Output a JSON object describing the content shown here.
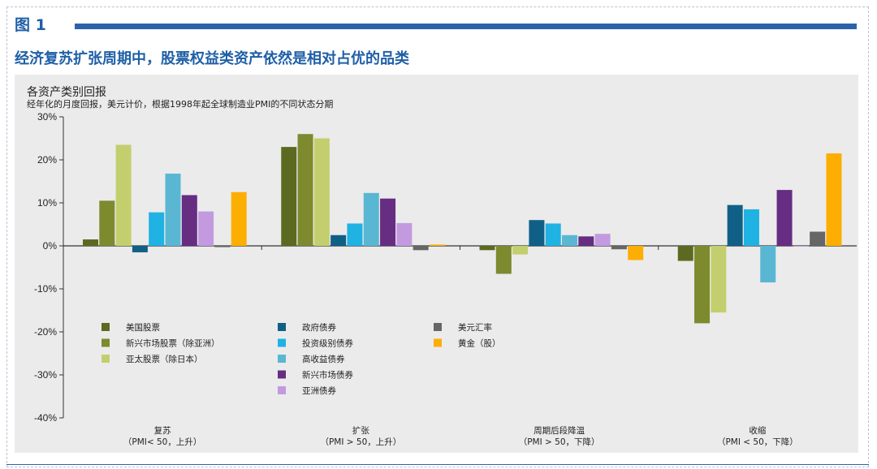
{
  "figure_label": "图 1",
  "headline": "经济复苏扩张周期中，股票权益类资产依然是相对占优的品类",
  "chart_data": {
    "type": "bar",
    "title": "各资产类别回报",
    "subtitle": "经年化的月度回报，美元计价，根据1998年起全球制造业PMI的不同状态分期",
    "ylim": [
      -40,
      30
    ],
    "yticks": [
      "30%",
      "20%",
      "10%",
      "0%",
      "-10%",
      "-20%",
      "-30%",
      "-40%"
    ],
    "categories": [
      {
        "name": "复苏",
        "sub": "（PMI< 50，上升）"
      },
      {
        "name": "扩张",
        "sub": "（PMI > 50，上升）"
      },
      {
        "name": "周期后段降温",
        "sub": "（PMI > 50，下降）"
      },
      {
        "name": "收缩",
        "sub": "（PMI < 50，下降）"
      }
    ],
    "series": [
      {
        "name": "美国股票",
        "color": "#5c6a21",
        "values": [
          1.5,
          23.0,
          -1.0,
          -3.5
        ]
      },
      {
        "name": "新兴市场股票（除亚洲）",
        "color": "#7d8a2e",
        "values": [
          10.5,
          26.0,
          -6.5,
          -18.0
        ]
      },
      {
        "name": "亚太股票（除日本）",
        "color": "#c3cf6e",
        "values": [
          23.5,
          25.0,
          -2.0,
          -15.5
        ]
      },
      {
        "name": "政府债券",
        "color": "#105f86",
        "values": [
          -1.5,
          2.5,
          6.0,
          9.5
        ]
      },
      {
        "name": "投资级别债券",
        "color": "#1fb2e3",
        "values": [
          7.8,
          5.2,
          5.2,
          8.5
        ]
      },
      {
        "name": "高收益债券",
        "color": "#5ab7d3",
        "values": [
          16.8,
          12.3,
          2.5,
          -8.5
        ]
      },
      {
        "name": "新兴市场债券",
        "color": "#662d83",
        "values": [
          11.8,
          11.0,
          2.2,
          13.0
        ]
      },
      {
        "name": "亚洲债券",
        "color": "#c39ae0",
        "values": [
          8.0,
          5.3,
          2.8,
          0.0
        ]
      },
      {
        "name": "美元汇率",
        "color": "#666666",
        "values": [
          -0.3,
          -1.0,
          -0.8,
          3.3
        ]
      },
      {
        "name": "黄金（股）",
        "color": "#fcae03",
        "values": [
          12.5,
          0.3,
          -3.3,
          21.5
        ]
      }
    ]
  }
}
